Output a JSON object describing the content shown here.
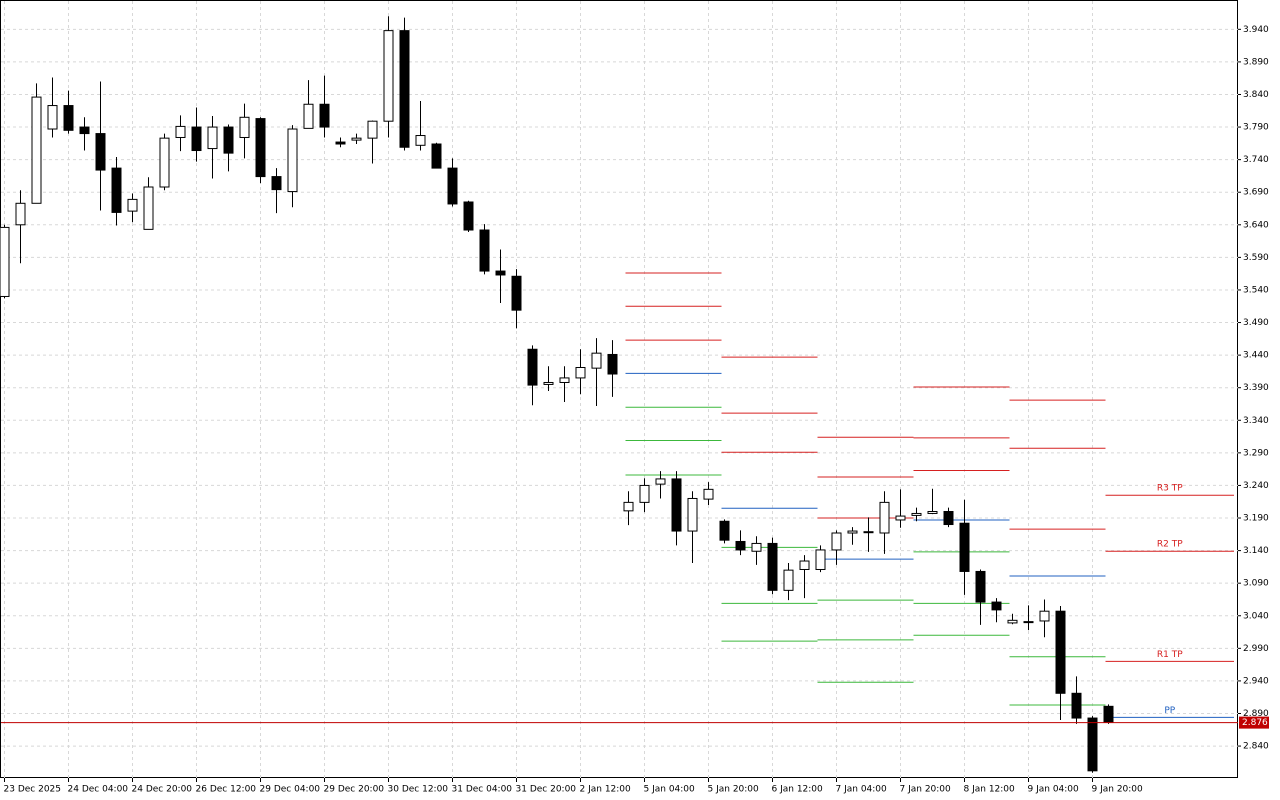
{
  "chart_data": {
    "type": "candlestick",
    "categories": [
      "23 Dec 2025",
      null,
      null,
      null,
      "24 Dec 04:00",
      null,
      null,
      null,
      "24 Dec 20:00",
      null,
      null,
      null,
      "26 Dec 12:00",
      null,
      null,
      null,
      "29 Dec 04:00",
      null,
      null,
      null,
      "29 Dec 20:00",
      null,
      null,
      null,
      "30 Dec 12:00",
      null,
      null,
      null,
      "31 Dec 04:00",
      null,
      null,
      null,
      "31 Dec 20:00",
      null,
      null,
      null,
      "2 Jan 12:00",
      null,
      null,
      null,
      "5 Jan 04:00",
      null,
      null,
      null,
      "5 Jan 20:00",
      null,
      null,
      null,
      "6 Jan 12:00",
      null,
      null,
      null,
      "7 Jan 04:00",
      null,
      null,
      null,
      "7 Jan 20:00",
      null,
      null,
      null,
      "8 Jan 12:00",
      null,
      null,
      null,
      "9 Jan 04:00",
      null,
      null,
      null,
      "9 Jan 20:00",
      null
    ],
    "open": [
      3.53,
      3.64,
      3.673,
      3.787,
      3.823,
      3.79,
      3.78,
      3.727,
      3.661,
      3.633,
      3.698,
      3.774,
      3.79,
      3.757,
      3.79,
      3.774,
      3.803,
      3.714,
      3.691,
      3.788,
      3.825,
      3.767,
      3.77,
      3.773,
      3.799,
      3.938,
      3.762,
      3.764,
      3.727,
      3.675,
      3.632,
      3.569,
      3.561,
      3.449,
      3.395,
      3.398,
      3.405,
      3.42,
      3.441,
      3.201,
      3.214,
      3.242,
      3.25,
      3.17,
      3.219,
      3.185,
      3.154,
      3.139,
      3.151,
      3.079,
      3.111,
      3.111,
      3.141,
      3.167,
      3.168,
      3.167,
      3.187,
      3.194,
      3.197,
      3.2,
      3.182,
      3.108,
      3.061,
      3.029,
      3.031,
      3.032,
      3.047,
      2.921,
      2.883,
      2.901
    ],
    "high": [
      3.64,
      3.693,
      3.857,
      3.866,
      3.846,
      3.805,
      3.86,
      3.744,
      3.688,
      3.713,
      3.78,
      3.808,
      3.82,
      3.807,
      3.794,
      3.826,
      3.805,
      3.727,
      3.793,
      3.862,
      3.869,
      3.774,
      3.78,
      3.8,
      3.96,
      3.958,
      3.83,
      3.766,
      3.742,
      3.677,
      3.641,
      3.602,
      3.572,
      3.455,
      3.423,
      3.423,
      3.449,
      3.466,
      3.463,
      3.231,
      3.251,
      3.262,
      3.262,
      3.231,
      3.245,
      3.188,
      3.171,
      3.162,
      3.16,
      3.121,
      3.133,
      3.148,
      3.171,
      3.176,
      3.191,
      3.231,
      3.234,
      3.206,
      3.235,
      3.206,
      3.218,
      3.111,
      3.067,
      3.043,
      3.056,
      3.065,
      3.055,
      2.947,
      2.886,
      2.904
    ],
    "low": [
      3.527,
      3.581,
      3.673,
      3.774,
      3.78,
      3.754,
      3.662,
      3.639,
      3.644,
      3.633,
      3.693,
      3.753,
      3.737,
      3.711,
      3.722,
      3.742,
      3.704,
      3.658,
      3.667,
      3.788,
      3.774,
      3.759,
      3.764,
      3.734,
      3.774,
      3.754,
      3.754,
      3.727,
      3.668,
      3.629,
      3.564,
      3.52,
      3.481,
      3.363,
      3.385,
      3.368,
      3.38,
      3.362,
      3.376,
      3.179,
      3.199,
      3.22,
      3.148,
      3.121,
      3.21,
      3.151,
      3.133,
      3.118,
      3.073,
      3.064,
      3.067,
      3.107,
      3.118,
      3.149,
      3.138,
      3.135,
      3.175,
      3.185,
      3.196,
      3.176,
      3.072,
      3.026,
      3.03,
      3.027,
      3.018,
      3.007,
      2.88,
      2.874,
      2.799,
      2.874
    ],
    "close": [
      3.636,
      3.673,
      3.836,
      3.823,
      3.785,
      3.78,
      3.724,
      3.659,
      3.679,
      3.698,
      3.773,
      3.791,
      3.754,
      3.79,
      3.75,
      3.805,
      3.714,
      3.694,
      3.787,
      3.825,
      3.79,
      3.764,
      3.773,
      3.799,
      3.938,
      3.759,
      3.777,
      3.727,
      3.672,
      3.632,
      3.569,
      3.563,
      3.509,
      3.394,
      3.398,
      3.405,
      3.421,
      3.443,
      3.411,
      3.214,
      3.24,
      3.25,
      3.17,
      3.22,
      3.234,
      3.156,
      3.141,
      3.151,
      3.079,
      3.11,
      3.124,
      3.141,
      3.167,
      3.17,
      3.169,
      3.214,
      3.193,
      3.197,
      3.2,
      3.18,
      3.108,
      3.061,
      3.049,
      3.033,
      3.03,
      3.047,
      2.921,
      2.883,
      2.802,
      2.877
    ],
    "pivots": [
      {
        "from": 39,
        "to": 44,
        "resistance": [
          3.463,
          3.515,
          3.566
        ],
        "pivot": 3.412,
        "support": [
          3.36,
          3.309,
          3.256
        ]
      },
      {
        "from": 45,
        "to": 50,
        "resistance": [
          3.291,
          3.351,
          3.437
        ],
        "pivot": 3.205,
        "support": [
          3.145,
          3.059,
          3.001
        ]
      },
      {
        "from": 51,
        "to": 56,
        "resistance": [
          3.19,
          3.253,
          3.314
        ],
        "pivot": 3.127,
        "support": [
          3.064,
          3.003,
          2.938
        ]
      },
      {
        "from": 57,
        "to": 62,
        "resistance": [
          3.263,
          3.313,
          3.391
        ],
        "pivot": 3.187,
        "support": [
          3.138,
          3.059,
          3.01
        ]
      },
      {
        "from": 63,
        "to": 68,
        "resistance": [
          3.173,
          3.297,
          3.371
        ],
        "pivot": 3.101,
        "support": [
          2.977,
          2.903
        ]
      },
      {
        "from": 69,
        "to": 69,
        "resistance": [
          2.97,
          3.139,
          3.225
        ],
        "pivot": 2.884,
        "support": [],
        "resistance_labels": [
          "R1 TP",
          "R2 TP",
          "R3 TP"
        ],
        "pivot_label": "PP"
      }
    ],
    "resistance_color": "#d62020",
    "pivot_color": "#2060c0",
    "support_color": "#3cb83c",
    "last_price": 2.876,
    "last_price_color": "#c00000",
    "ylim": [
      2.791,
      3.985
    ],
    "yticks": [
      {
        "value": 3.94,
        "label": "3.940"
      },
      {
        "value": 3.89,
        "label": "3.890"
      },
      {
        "value": 3.84,
        "label": "3.840"
      },
      {
        "value": 3.79,
        "label": "3.790"
      },
      {
        "value": 3.74,
        "label": "3.740"
      },
      {
        "value": 3.69,
        "label": "3.690"
      },
      {
        "value": 3.64,
        "label": "3.640"
      },
      {
        "value": 3.59,
        "label": "3.590"
      },
      {
        "value": 3.54,
        "label": "3.540"
      },
      {
        "value": 3.49,
        "label": "3.490"
      },
      {
        "value": 3.44,
        "label": "3.440"
      },
      {
        "value": 3.39,
        "label": "3.390"
      },
      {
        "value": 3.34,
        "label": "3.340"
      },
      {
        "value": 3.29,
        "label": "3.290"
      },
      {
        "value": 3.24,
        "label": "3.240"
      },
      {
        "value": 3.19,
        "label": "3.190"
      },
      {
        "value": 3.14,
        "label": "3.140"
      },
      {
        "value": 3.09,
        "label": "3.090"
      },
      {
        "value": 3.04,
        "label": "3.040"
      },
      {
        "value": 2.99,
        "label": "2.990"
      },
      {
        "value": 2.94,
        "label": "2.940"
      },
      {
        "value": 2.89,
        "label": "2.890"
      },
      {
        "value": 2.84,
        "label": "2.840"
      }
    ],
    "grid": true
  }
}
